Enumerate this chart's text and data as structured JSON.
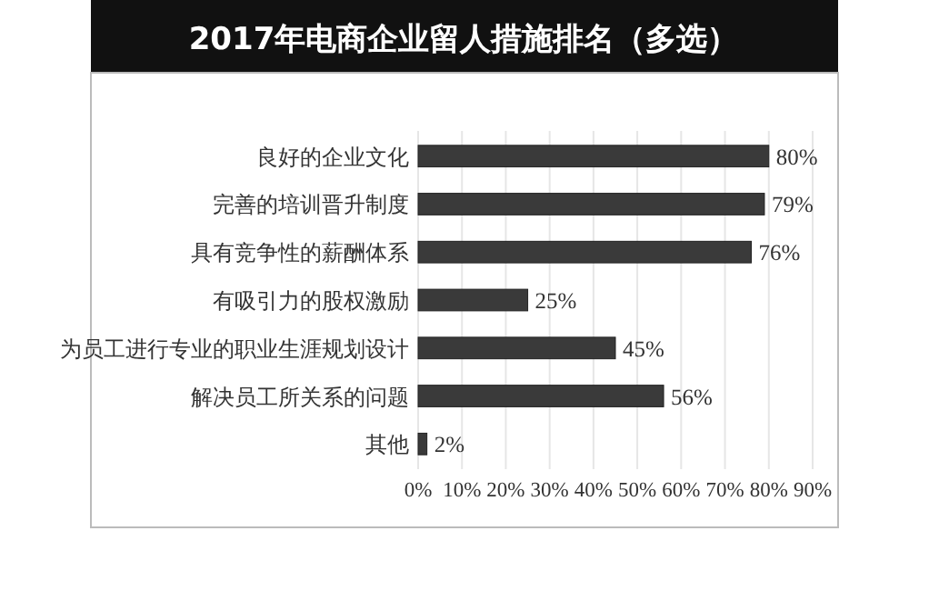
{
  "chart_data": {
    "type": "bar",
    "orientation": "horizontal",
    "title": "2017年电商企业留人措施排名（多选）",
    "categories": [
      "良好的企业文化",
      "完善的培训晋升制度",
      "具有竞争性的薪酬体系",
      "有吸引力的股权激励",
      "为员工进行专业的职业生涯规划设计",
      "解决员工所关系的问题",
      "其他"
    ],
    "values": [
      80,
      79,
      76,
      25,
      45,
      56,
      2
    ],
    "value_labels": [
      "80%",
      "79%",
      "76%",
      "25%",
      "45%",
      "56%",
      "2%"
    ],
    "color": "#3a3a3a",
    "xlim": [
      0,
      90
    ],
    "xticks": [
      {
        "value": 0,
        "label": "0%"
      },
      {
        "value": 10,
        "label": "10%"
      },
      {
        "value": 20,
        "label": "20%"
      },
      {
        "value": 30,
        "label": "30%"
      },
      {
        "value": 40,
        "label": "40%"
      },
      {
        "value": 50,
        "label": "50%"
      },
      {
        "value": 60,
        "label": "60%"
      },
      {
        "value": 70,
        "label": "70%"
      },
      {
        "value": 80,
        "label": "80%"
      },
      {
        "value": 90,
        "label": "90%"
      }
    ],
    "grid": "x"
  }
}
